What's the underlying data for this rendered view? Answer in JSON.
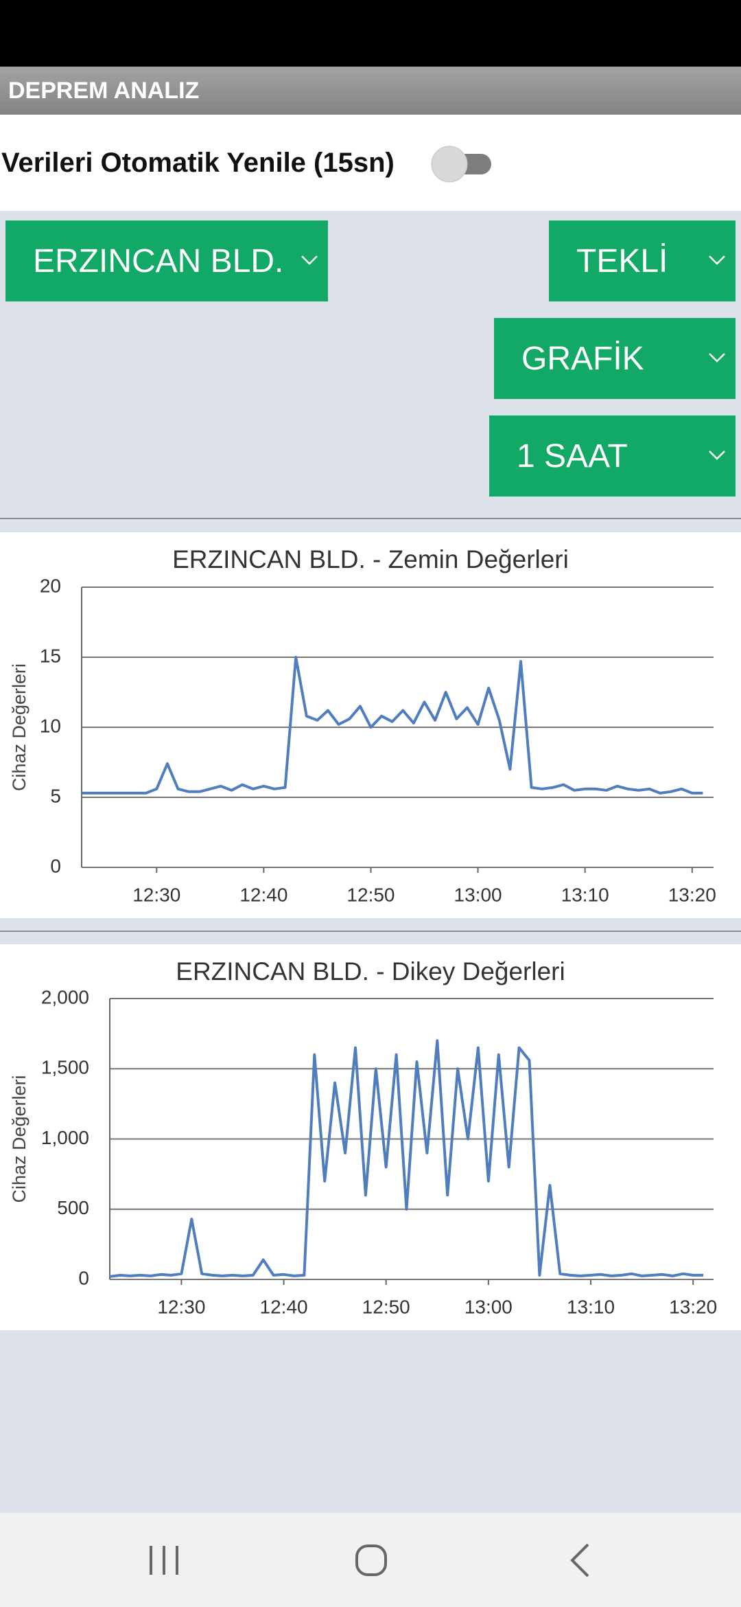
{
  "app_bar": {
    "title": "DEPREM ANALIZ"
  },
  "refresh": {
    "label": "Verileri Otomatik Yenile (15sn)"
  },
  "dropdowns": [
    "ERZINCAN BLD.",
    "TEKLİ",
    "GRAFİK",
    "1 SAAT"
  ],
  "chart_data": [
    {
      "type": "line",
      "title": "ERZINCAN BLD. - Zemin Değerleri",
      "y_label": "Cihaz Değerleri",
      "color": "#4f7dbd",
      "grid": true,
      "x": [
        "12:23",
        "12:24",
        "12:25",
        "12:26",
        "12:27",
        "12:28",
        "12:29",
        "12:30",
        "12:31",
        "12:32",
        "12:33",
        "12:34",
        "12:35",
        "12:36",
        "12:37",
        "12:38",
        "12:39",
        "12:40",
        "12:41",
        "12:42",
        "12:43",
        "12:44",
        "12:45",
        "12:46",
        "12:47",
        "12:48",
        "12:49",
        "12:50",
        "12:51",
        "12:52",
        "12:53",
        "12:54",
        "12:55",
        "12:56",
        "12:57",
        "12:58",
        "12:59",
        "13:00",
        "13:01",
        "13:02",
        "13:03",
        "13:04",
        "13:05",
        "13:06",
        "13:07",
        "13:08",
        "13:09",
        "13:10",
        "13:11",
        "13:12",
        "13:13",
        "13:14",
        "13:15",
        "13:16",
        "13:17",
        "13:18",
        "13:19",
        "13:20",
        "13:21"
      ],
      "values": [
        5.3,
        5.3,
        5.3,
        5.3,
        5.3,
        5.3,
        5.3,
        5.6,
        7.4,
        5.6,
        5.4,
        5.4,
        5.6,
        5.8,
        5.5,
        5.9,
        5.6,
        5.8,
        5.6,
        5.7,
        15.0,
        10.8,
        10.5,
        11.2,
        10.2,
        10.6,
        11.5,
        10.0,
        10.8,
        10.4,
        11.2,
        10.3,
        11.8,
        10.5,
        12.5,
        10.6,
        11.4,
        10.2,
        12.8,
        10.5,
        7.0,
        14.7,
        5.7,
        5.6,
        5.7,
        5.9,
        5.5,
        5.6,
        5.6,
        5.5,
        5.8,
        5.6,
        5.5,
        5.6,
        5.3,
        5.4,
        5.6,
        5.3,
        5.3
      ],
      "xlim": [
        "12:23",
        "13:22"
      ],
      "xticks": [
        "12:30",
        "12:40",
        "12:50",
        "13:00",
        "13:10",
        "13:20"
      ],
      "ylim": [
        0,
        20
      ],
      "yticks": [
        0,
        5,
        10,
        15,
        20
      ]
    },
    {
      "type": "line",
      "title": "ERZINCAN BLD. - Dikey Değerleri",
      "y_label": "Cihaz Değerleri",
      "color": "#4f7dbd",
      "grid": true,
      "x": [
        "12:23",
        "12:24",
        "12:25",
        "12:26",
        "12:27",
        "12:28",
        "12:29",
        "12:30",
        "12:31",
        "12:32",
        "12:33",
        "12:34",
        "12:35",
        "12:36",
        "12:37",
        "12:38",
        "12:39",
        "12:40",
        "12:41",
        "12:42",
        "12:43",
        "12:44",
        "12:45",
        "12:46",
        "12:47",
        "12:48",
        "12:49",
        "12:50",
        "12:51",
        "12:52",
        "12:53",
        "12:54",
        "12:55",
        "12:56",
        "12:57",
        "12:58",
        "12:59",
        "13:00",
        "13:01",
        "13:02",
        "13:03",
        "13:04",
        "13:05",
        "13:06",
        "13:07",
        "13:08",
        "13:09",
        "13:10",
        "13:11",
        "13:12",
        "13:13",
        "13:14",
        "13:15",
        "13:16",
        "13:17",
        "13:18",
        "13:19",
        "13:20",
        "13:21"
      ],
      "values": [
        20,
        30,
        25,
        30,
        25,
        35,
        30,
        40,
        430,
        40,
        30,
        25,
        30,
        25,
        30,
        140,
        30,
        35,
        25,
        30,
        1600,
        700,
        1400,
        900,
        1650,
        600,
        1500,
        800,
        1600,
        500,
        1550,
        900,
        1700,
        600,
        1500,
        1000,
        1650,
        700,
        1600,
        800,
        1650,
        1560,
        30,
        670,
        40,
        30,
        25,
        30,
        35,
        25,
        30,
        40,
        25,
        30,
        35,
        25,
        40,
        30,
        30
      ],
      "xlim": [
        "12:23",
        "13:22"
      ],
      "xticks": [
        "12:30",
        "12:40",
        "12:50",
        "13:00",
        "13:10",
        "13:20"
      ],
      "ylim": [
        0,
        2000
      ],
      "yticks": [
        0,
        500,
        {
          "value": 1000,
          "label": "1,000"
        },
        {
          "value": 1500,
          "label": "1,500"
        },
        {
          "value": 2000,
          "label": "2,000"
        }
      ]
    }
  ]
}
